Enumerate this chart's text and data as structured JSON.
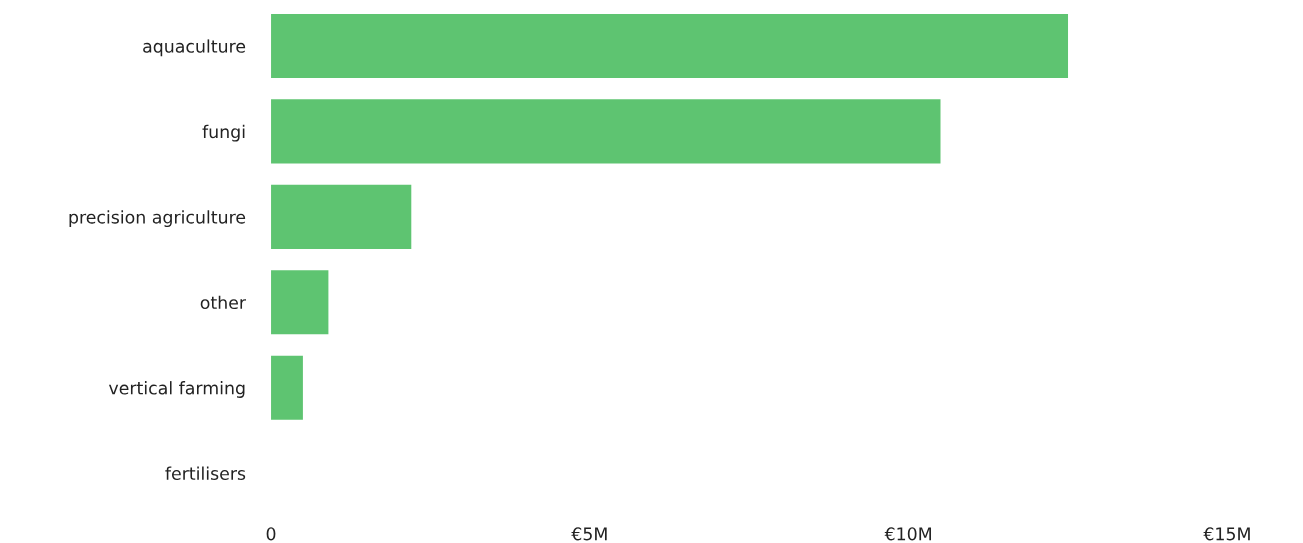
{
  "chart_data": {
    "type": "bar",
    "orientation": "horizontal",
    "categories": [
      "aquaculture",
      "fungi",
      "precision agriculture",
      "other",
      "vertical farming",
      "fertilisers"
    ],
    "values": [
      12.5,
      10.5,
      2.2,
      0.9,
      0.5,
      0
    ],
    "color": "#5ec471",
    "xlim": [
      0,
      15
    ],
    "xticks": [
      0,
      {
        "value": 5,
        "label": "€5M"
      },
      {
        "value": 10,
        "label": "€10M"
      },
      {
        "value": 15,
        "label": "€15M"
      }
    ],
    "grid": false,
    "legend": false
  }
}
